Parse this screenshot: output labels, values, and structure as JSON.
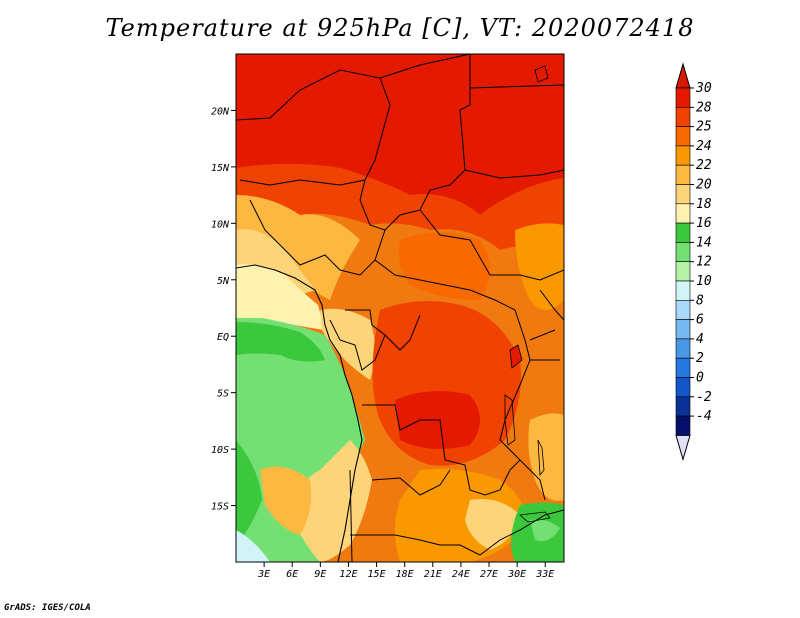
{
  "title": "Temperature at 925hPa [C], VT: 2020072418",
  "credit": "GrADS: IGES/COLA",
  "map": {
    "lat_ticks": [
      "20N",
      "15N",
      "10N",
      "5N",
      "EQ",
      "5S",
      "10S",
      "15S"
    ],
    "lat_values": [
      20,
      15,
      10,
      5,
      0,
      -5,
      -10,
      -15
    ],
    "lon_ticks": [
      "3E",
      "6E",
      "9E",
      "12E",
      "15E",
      "18E",
      "21E",
      "24E",
      "27E",
      "30E",
      "33E"
    ],
    "lon_values": [
      3,
      6,
      9,
      12,
      15,
      18,
      21,
      24,
      27,
      30,
      33
    ],
    "lon_range": [
      0,
      35
    ],
    "lat_range": [
      -20,
      25
    ]
  },
  "colorbar": {
    "labels": [
      "30",
      "28",
      "25",
      "24",
      "22",
      "20",
      "18",
      "16",
      "14",
      "12",
      "10",
      "8",
      "6",
      "4",
      "2",
      "0",
      "-2",
      "-4"
    ],
    "colors": [
      "#e41a00",
      "#f04200",
      "#f86a00",
      "#fa9800",
      "#fcb840",
      "#fcd47a",
      "#fef2b0",
      "#3cc83c",
      "#74e074",
      "#b4f4a8",
      "#d2f4f6",
      "#a8d8fa",
      "#78b8f0",
      "#4898e6",
      "#2478e0",
      "#1256c8",
      "#0a3296",
      "#06106a"
    ],
    "top_arrow_color": "#d41a00",
    "bottom_arrow_color": "#e0e0f8"
  }
}
